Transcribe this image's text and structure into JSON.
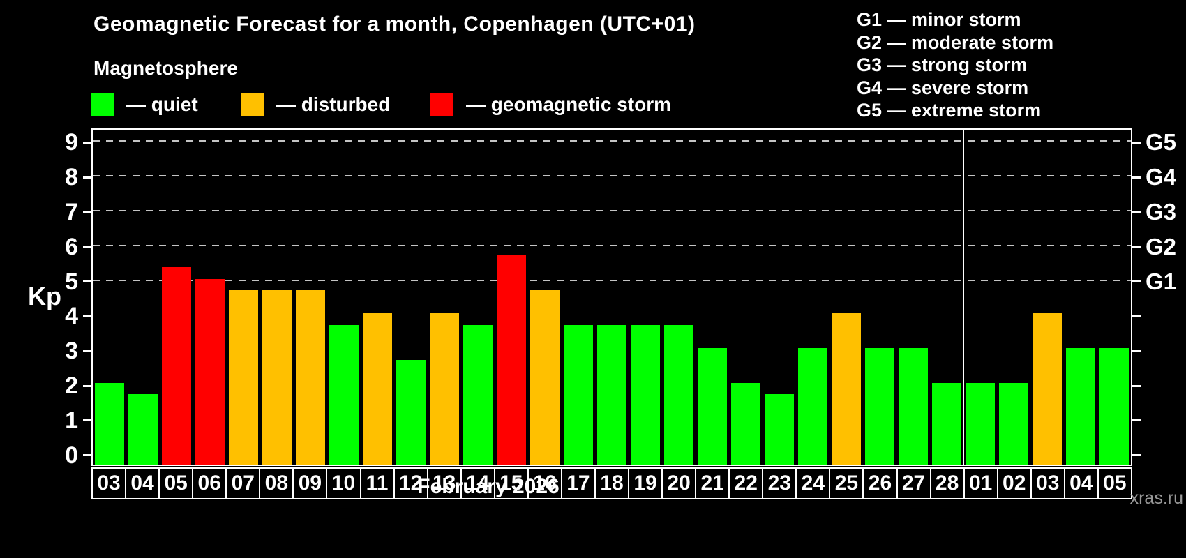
{
  "header": {
    "title": "Geomagnetic Forecast for a month, Copenhagen (UTC+01)",
    "subtitle": "Magnetosphere",
    "legend": [
      {
        "key": "quiet",
        "label": "— quiet"
      },
      {
        "key": "disturbed",
        "label": "— disturbed"
      },
      {
        "key": "storm",
        "label": "— geomagnetic storm"
      }
    ],
    "g_scale_legend": [
      "G1 — minor storm",
      "G2 — moderate storm",
      "G3 — strong storm",
      "G4 — severe storm",
      "G5 — extreme storm"
    ]
  },
  "colors": {
    "quiet": "#00ff00",
    "disturbed": "#ffc000",
    "storm": "#ff0000",
    "frame": "#ffffff",
    "grid": "#c4c4c4",
    "background": "#000000",
    "watermark_text": "#999999"
  },
  "chart_data": {
    "type": "bar",
    "title": "Geomagnetic Forecast for a month, Copenhagen (UTC+01)",
    "subtitle": "Magnetosphere",
    "ylabel": "Kp",
    "xlabel": "February 2026",
    "ylim": [
      0,
      9
    ],
    "yticks": [
      0,
      1,
      2,
      3,
      4,
      5,
      6,
      7,
      8,
      9
    ],
    "grid": "dashed horizontal lines at Kp 5,6,7,8,9 only (G1–G5 levels)",
    "legend_position": "top-left",
    "categories": [
      "03",
      "04",
      "05",
      "06",
      "07",
      "08",
      "09",
      "10",
      "11",
      "12",
      "13",
      "14",
      "15",
      "16",
      "17",
      "18",
      "19",
      "20",
      "21",
      "22",
      "23",
      "24",
      "25",
      "26",
      "27",
      "28",
      "01",
      "02",
      "03",
      "04",
      "05"
    ],
    "values": [
      2.0,
      1.67,
      5.33,
      5.0,
      4.67,
      4.67,
      4.67,
      3.67,
      4.0,
      2.67,
      4.0,
      3.67,
      5.67,
      4.67,
      3.67,
      3.67,
      3.67,
      3.67,
      3.0,
      2.0,
      1.67,
      3.0,
      4.0,
      3.0,
      3.0,
      2.0,
      2.0,
      2.0,
      4.0,
      3.0,
      3.0
    ],
    "status": [
      "quiet",
      "quiet",
      "storm",
      "storm",
      "disturbed",
      "disturbed",
      "disturbed",
      "quiet",
      "disturbed",
      "quiet",
      "disturbed",
      "quiet",
      "storm",
      "disturbed",
      "quiet",
      "quiet",
      "quiet",
      "quiet",
      "quiet",
      "quiet",
      "quiet",
      "quiet",
      "disturbed",
      "quiet",
      "quiet",
      "quiet",
      "quiet",
      "quiet",
      "disturbed",
      "quiet",
      "quiet"
    ],
    "g_levels": [
      5,
      6,
      7,
      8,
      9
    ],
    "g_axis": [
      {
        "label": "G1",
        "kp": 5
      },
      {
        "label": "G2",
        "kp": 6
      },
      {
        "label": "G3",
        "kp": 7
      },
      {
        "label": "G4",
        "kp": 8
      },
      {
        "label": "G5",
        "kp": 9
      }
    ],
    "month_separator_after_index": 25
  },
  "footer": {
    "xaxis_title": "February 2026",
    "watermark": "xras.ru"
  }
}
